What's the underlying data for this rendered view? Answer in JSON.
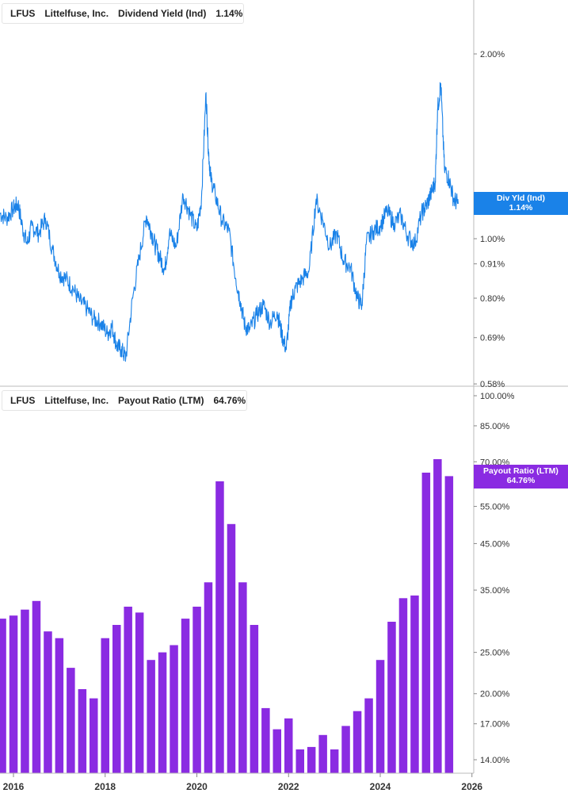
{
  "top_panel": {
    "ticker": "LFUS",
    "company": "Littelfuse, Inc.",
    "metric": "Dividend Yield (Ind)",
    "value": "1.14%",
    "badge_line1": "Div Yld (Ind)",
    "badge_line2": "1.14%",
    "color": "#1a82e8"
  },
  "bottom_panel": {
    "ticker": "LFUS",
    "company": "Littelfuse, Inc.",
    "metric": "Payout Ratio (LTM)",
    "value": "64.76%",
    "badge_line1": "Payout Ratio (LTM)",
    "badge_line2": "64.76%",
    "color": "#8a2be2"
  },
  "x_axis": {
    "ticks": [
      {
        "year": 2016,
        "label": "2016"
      },
      {
        "year": 2018,
        "label": "2018"
      },
      {
        "year": 2020,
        "label": "2020"
      },
      {
        "year": 2022,
        "label": "2022"
      },
      {
        "year": 2024,
        "label": "2024"
      },
      {
        "year": 2026,
        "label": "2026"
      }
    ]
  },
  "chart_data": [
    {
      "type": "line",
      "scale": "log",
      "ylim": [
        0.58,
        2.15
      ],
      "y_ticks": [
        {
          "value": 2.0,
          "label": "2.00%"
        },
        {
          "value": 1.0,
          "label": "1.00%"
        },
        {
          "value": 0.91,
          "label": "0.91%"
        },
        {
          "value": 0.8,
          "label": "0.80%"
        },
        {
          "value": 0.69,
          "label": "0.69%"
        },
        {
          "value": 0.58,
          "label": "0.58%"
        }
      ],
      "series": [
        {
          "x": [
            2015.7,
            2015.85,
            2016.0,
            2016.1,
            2016.2,
            2016.3,
            2016.4,
            2016.55,
            2016.7,
            2016.85,
            2017.0,
            2017.15,
            2017.3,
            2017.45,
            2017.6,
            2017.75,
            2017.9,
            2018.05,
            2018.15,
            2018.25,
            2018.35,
            2018.45,
            2018.6,
            2018.75,
            2018.9,
            2019.0,
            2019.1,
            2019.2,
            2019.3,
            2019.4,
            2019.55,
            2019.7,
            2019.85,
            2020.0,
            2020.1,
            2020.2,
            2020.25,
            2020.3,
            2020.4,
            2020.55,
            2020.7,
            2020.85,
            2020.95,
            2021.05,
            2021.15,
            2021.3,
            2021.45,
            2021.6,
            2021.75,
            2021.85,
            2021.95,
            2022.05,
            2022.15,
            2022.3,
            2022.45,
            2022.6,
            2022.75,
            2022.9,
            2023.05,
            2023.2,
            2023.35,
            2023.5,
            2023.6,
            2023.7,
            2023.85,
            2024.0,
            2024.15,
            2024.3,
            2024.45,
            2024.6,
            2024.75,
            2024.9,
            2025.0,
            2025.1,
            2025.2,
            2025.25,
            2025.32,
            2025.4,
            2025.5,
            2025.6,
            2025.7
          ],
          "values": [
            1.1,
            1.08,
            1.12,
            1.14,
            1.04,
            0.98,
            1.05,
            1.02,
            1.08,
            0.96,
            0.88,
            0.86,
            0.83,
            0.79,
            0.77,
            0.74,
            0.73,
            0.7,
            0.72,
            0.67,
            0.66,
            0.64,
            0.8,
            0.94,
            1.09,
            1.03,
            0.97,
            0.93,
            0.89,
            1.02,
            0.97,
            1.18,
            1.1,
            1.03,
            1.16,
            1.73,
            1.4,
            1.26,
            1.18,
            1.07,
            1.03,
            0.86,
            0.79,
            0.72,
            0.71,
            0.75,
            0.78,
            0.73,
            0.76,
            0.7,
            0.66,
            0.79,
            0.83,
            0.86,
            0.89,
            1.16,
            1.07,
            0.97,
            1.02,
            0.92,
            0.9,
            0.8,
            0.78,
            0.99,
            1.03,
            1.05,
            1.11,
            1.06,
            1.09,
            1.01,
            0.98,
            1.1,
            1.13,
            1.18,
            1.24,
            1.62,
            1.79,
            1.3,
            1.25,
            1.16,
            1.14
          ]
        }
      ]
    },
    {
      "type": "bar",
      "scale": "log",
      "ylim": [
        0.13,
        1.0
      ],
      "y_ticks": [
        {
          "value": 1.0,
          "label": "100.00%"
        },
        {
          "value": 0.85,
          "label": "85.00%"
        },
        {
          "value": 0.7,
          "label": "70.00%"
        },
        {
          "value": 0.55,
          "label": "55.00%"
        },
        {
          "value": 0.45,
          "label": "45.00%"
        },
        {
          "value": 0.35,
          "label": "35.00%"
        },
        {
          "value": 0.25,
          "label": "25.00%"
        },
        {
          "value": 0.2,
          "label": "20.00%"
        },
        {
          "value": 0.17,
          "label": "17.00%"
        },
        {
          "value": 0.14,
          "label": "14.00%"
        }
      ],
      "series": [
        {
          "x": [
            2015.75,
            2016.0,
            2016.25,
            2016.5,
            2016.75,
            2017.0,
            2017.25,
            2017.5,
            2017.75,
            2018.0,
            2018.25,
            2018.5,
            2018.75,
            2019.0,
            2019.25,
            2019.5,
            2019.75,
            2020.0,
            2020.25,
            2020.5,
            2020.75,
            2021.0,
            2021.25,
            2021.5,
            2021.75,
            2022.0,
            2022.25,
            2022.5,
            2022.75,
            2023.0,
            2023.25,
            2023.5,
            2023.75,
            2024.0,
            2024.25,
            2024.5,
            2024.75,
            2025.0,
            2025.25,
            2025.5
          ],
          "values": [
            0.3,
            0.305,
            0.315,
            0.33,
            0.28,
            0.27,
            0.23,
            0.205,
            0.195,
            0.27,
            0.29,
            0.32,
            0.31,
            0.24,
            0.25,
            0.26,
            0.3,
            0.32,
            0.365,
            0.63,
            0.5,
            0.365,
            0.29,
            0.185,
            0.165,
            0.175,
            0.148,
            0.15,
            0.16,
            0.148,
            0.168,
            0.182,
            0.195,
            0.24,
            0.295,
            0.335,
            0.34,
            0.66,
            0.71,
            0.6476
          ]
        }
      ]
    }
  ]
}
